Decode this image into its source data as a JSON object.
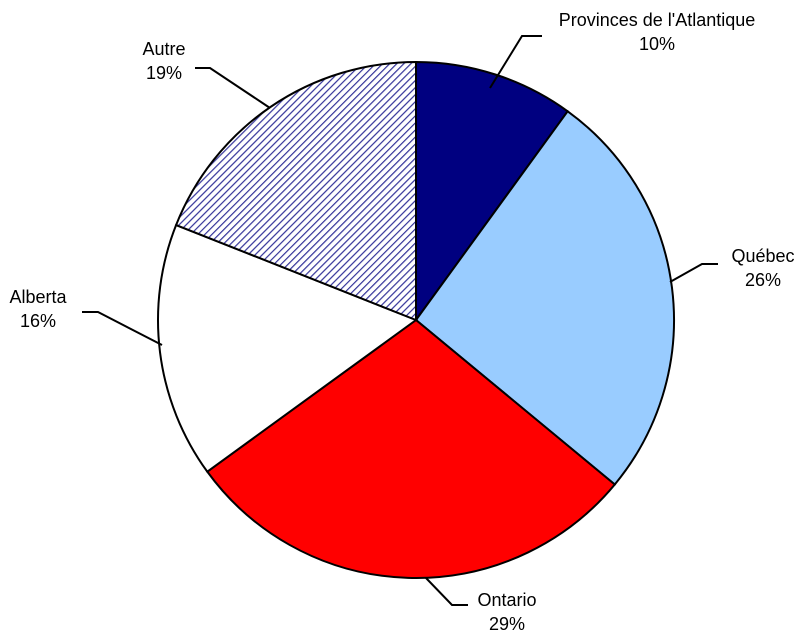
{
  "chart_data": {
    "type": "pie",
    "title": "",
    "start_angle_deg": 0,
    "direction": "clockwise",
    "slices": [
      {
        "label": "Provinces de l'Atlantique",
        "value": 10,
        "value_label": "10%",
        "color": "#000080",
        "pattern": "solid"
      },
      {
        "label": "Québec",
        "value": 26,
        "value_label": "26%",
        "color": "#99CCFF",
        "pattern": "solid"
      },
      {
        "label": "Ontario",
        "value": 29,
        "value_label": "29%",
        "color": "#FF0000",
        "pattern": "solid"
      },
      {
        "label": "Alberta",
        "value": 16,
        "value_label": "16%",
        "color": "#FFFFFF",
        "pattern": "solid"
      },
      {
        "label": "Autre",
        "value": 19,
        "value_label": "19%",
        "color": "#333399",
        "pattern": "diagonal-hatch"
      }
    ]
  }
}
